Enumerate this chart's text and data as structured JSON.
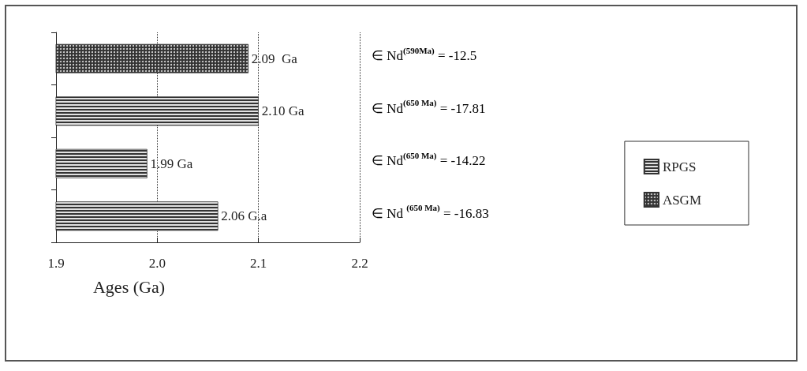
{
  "chart_data": {
    "type": "bar",
    "orientation": "horizontal",
    "xlabel": "Ages (Ga)",
    "categories": [
      null,
      null,
      null,
      null
    ],
    "series": [
      {
        "name": "RPGS",
        "color": "#333333",
        "values": [
          null,
          2.1,
          1.99,
          2.06
        ],
        "value_labels": [
          null,
          "2.10 Ga",
          "1.99 Ga",
          "2.06 G.a"
        ]
      },
      {
        "name": "ASGM",
        "color": "#333333",
        "values": [
          2.09,
          null,
          null,
          null
        ],
        "value_labels": [
          "2.09  Ga",
          null,
          null,
          null
        ]
      }
    ],
    "xlim": [
      1.9,
      2.2
    ],
    "xticks": [
      {
        "value": 1.9,
        "label": "1.9"
      },
      {
        "value": 2.0,
        "label": "2.0"
      },
      {
        "value": 2.1,
        "label": "2.1"
      },
      {
        "value": 2.2,
        "label": "2.2"
      }
    ],
    "grid": "x",
    "legend": "right",
    "annotations": [
      "∈ Nd$^{(590Ma)}$ = -12.5",
      "∈ Nd$^{(650 Ma)}$ = -17.81",
      "∈ Nd$^{(650 Ma)}$ = -14.22",
      "∈ Nd $^{(650 Ma)}$ = -16.83"
    ]
  }
}
